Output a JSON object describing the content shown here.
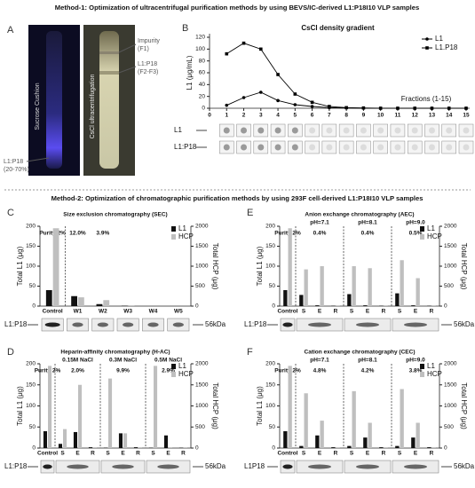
{
  "figure": {
    "method1_title": "Method-1: Optimization of ultracentrifugal purification methods by using BEVS/IC-derived L1:P18I10 VLP samples",
    "method2_title": "Method-2: Optimization of chromatographic purification methods by using 293F cell-derived L1:P18I10 VLP samples",
    "panel_a": {
      "letter": "A",
      "tube1": "Sucrose Cushion",
      "tube2": "CsCl ultracentrifugation",
      "impurity": [
        "Impurity",
        "(F1)"
      ],
      "band": [
        "L1:P18",
        "(F2-F3)"
      ],
      "cushion_band": [
        "L1:P18",
        "(20-70%)"
      ]
    }
  },
  "chart_data": [
    {
      "type": "line",
      "panel": "B",
      "title": "CsCl density gradient",
      "ylabel": "L1 (μg/mL)",
      "annotation": "Fractions (1-15)",
      "x": [
        1,
        2,
        3,
        4,
        5,
        6,
        7,
        8,
        9,
        10,
        11,
        12,
        13,
        14,
        15
      ],
      "series": [
        {
          "name": "L1",
          "color": "#000000",
          "marker": "circle",
          "values": [
            5,
            18,
            27,
            13,
            6,
            3,
            1,
            0.5,
            0,
            0,
            0,
            0,
            0,
            0,
            0
          ]
        },
        {
          "name": "L1.P18",
          "color": "#000000",
          "marker": "square",
          "values": [
            92,
            110,
            100,
            57,
            24,
            10,
            3,
            1,
            0.5,
            0,
            0,
            0,
            0,
            0,
            0
          ]
        }
      ],
      "xlim": [
        0,
        15
      ],
      "xticks": [
        0,
        1,
        2,
        3,
        4,
        5,
        6,
        7,
        8,
        9,
        10,
        11,
        12,
        13,
        14,
        15
      ],
      "ylim": [
        0,
        120
      ],
      "yticks": [
        0,
        20,
        40,
        60,
        80,
        100,
        120
      ],
      "legend": "upper right",
      "blot_rows": [
        "L1",
        "L1:P18"
      ]
    },
    {
      "type": "bar",
      "panel": "C",
      "title": "Size exclusion chromatography (SEC)",
      "ylabel": "Total L1 (μg)",
      "y2label": "Total HCP (μg)",
      "categories": [
        "Control",
        "W1",
        "W2",
        "W3",
        "W4",
        "W5"
      ],
      "series": [
        {
          "name": "L1",
          "color": "#111111",
          "values": [
            40,
            25,
            5,
            1,
            0,
            0
          ]
        },
        {
          "name": "HCP",
          "color": "#bfbfbf",
          "axis": "y2",
          "values": [
            1950,
            220,
            150,
            20,
            0,
            0
          ]
        }
      ],
      "annotations": [
        "Purity 2%",
        "12.0%",
        "3.9%"
      ],
      "ylim": [
        0,
        200
      ],
      "yticks": [
        0,
        50,
        100,
        150,
        200
      ],
      "y2lim": [
        0,
        2000
      ],
      "y2ticks": [
        0,
        500,
        1000,
        1500,
        2000
      ],
      "legend": "upper right",
      "blot_label": "L1:P18",
      "blot_marker": "56kDa"
    },
    {
      "type": "bar",
      "panel": "E",
      "title": "Anion exchange chromatography (AEC)",
      "ylabel": "Total L1 (μg)",
      "y2label": "Total HCP (μg)",
      "categories": [
        "Control",
        "S",
        "E",
        "R",
        "S",
        "E",
        "R",
        "S",
        "E",
        "R"
      ],
      "groups": [
        "pH=7.1",
        "pH=8.1",
        "pH=9.0"
      ],
      "series": [
        {
          "name": "L1",
          "color": "#111111",
          "values": [
            40,
            28,
            2,
            1,
            30,
            2,
            1,
            32,
            2,
            1
          ]
        },
        {
          "name": "HCP",
          "color": "#bfbfbf",
          "axis": "y2",
          "values": [
            1950,
            920,
            1000,
            20,
            1000,
            950,
            20,
            1150,
            700,
            20
          ]
        }
      ],
      "annotations": [
        "Purity 2%",
        "0.4%",
        "0.4%",
        "0.5%"
      ],
      "ylim": [
        0,
        200
      ],
      "yticks": [
        0,
        50,
        100,
        150,
        200
      ],
      "y2lim": [
        0,
        2000
      ],
      "y2ticks": [
        0,
        500,
        1000,
        1500,
        2000
      ],
      "legend": "upper right",
      "blot_label": "L1:P18",
      "blot_marker": "56kDa"
    },
    {
      "type": "bar",
      "panel": "D",
      "title": "Heparin-affinity chromatography (H-AC)",
      "ylabel": "Total L1 (μg)",
      "y2label": "Total HCP (μg)",
      "categories": [
        "Control",
        "S",
        "E",
        "R",
        "S",
        "E",
        "R",
        "S",
        "E",
        "R"
      ],
      "groups": [
        "0.15M NaCl",
        "0.3M NaCl",
        "0.5M NaCl"
      ],
      "series": [
        {
          "name": "L1",
          "color": "#111111",
          "values": [
            40,
            10,
            38,
            2,
            1,
            35,
            2,
            1,
            30,
            1
          ]
        },
        {
          "name": "HCP",
          "color": "#bfbfbf",
          "axis": "y2",
          "values": [
            1950,
            450,
            1500,
            20,
            1650,
            350,
            20,
            1950,
            20,
            20
          ]
        }
      ],
      "annotations": [
        "Purity 2%",
        "2.0%",
        "9.9%",
        "2.9%"
      ],
      "ylim": [
        0,
        200
      ],
      "yticks": [
        0,
        50,
        100,
        150,
        200
      ],
      "y2lim": [
        0,
        2000
      ],
      "y2ticks": [
        0,
        500,
        1000,
        1500,
        2000
      ],
      "legend": "upper right",
      "blot_label": "L1:P18",
      "blot_marker": "56kDa"
    },
    {
      "type": "bar",
      "panel": "F",
      "title": "Cation exchange chromatography (CEC)",
      "ylabel": "Total L1 (μg)",
      "y2label": "Total HCP (μg)",
      "categories": [
        "Control",
        "S",
        "E",
        "R",
        "S",
        "E",
        "R",
        "S",
        "E",
        "R"
      ],
      "groups": [
        "pH=7.1",
        "pH=8.1",
        "pH=9.0"
      ],
      "series": [
        {
          "name": "L1",
          "color": "#111111",
          "values": [
            40,
            5,
            30,
            2,
            5,
            25,
            2,
            5,
            25,
            2
          ]
        },
        {
          "name": "HCP",
          "color": "#bfbfbf",
          "axis": "y2",
          "values": [
            1950,
            1300,
            650,
            20,
            1350,
            600,
            20,
            1400,
            600,
            20
          ]
        }
      ],
      "annotations": [
        "Purity 2%",
        "4.8%",
        "4.2%",
        "3.8%"
      ],
      "ylim": [
        0,
        200
      ],
      "yticks": [
        0,
        50,
        100,
        150,
        200
      ],
      "y2lim": [
        0,
        2000
      ],
      "y2ticks": [
        0,
        500,
        1000,
        1500,
        2000
      ],
      "legend": "upper right",
      "blot_label": "L1P18",
      "blot_marker": "56kDa"
    }
  ]
}
